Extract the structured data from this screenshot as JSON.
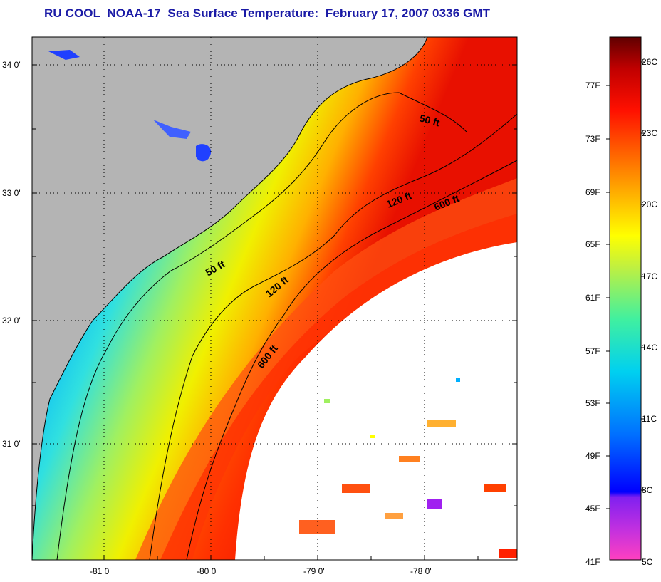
{
  "title": "RU COOL  NOAA-17  Sea Surface Temperature:  February 17, 2007 0336 GMT",
  "map": {
    "lat_labels": [
      "34 0'",
      "33 0'",
      "32 0'",
      "31 0'"
    ],
    "lon_labels": [
      "-81 0'",
      "-80 0'",
      "-79 0'",
      "-78 0'"
    ],
    "contours": [
      "50 ft",
      "120 ft",
      "600 ft"
    ],
    "contour_label_positions": {
      "50_ft_a": "50 ft",
      "50_ft_b": "50 ft",
      "120_ft_a": "120 ft",
      "120_ft_b": "120 ft",
      "600_ft_a": "600 ft",
      "600_ft_b": "600 ft"
    },
    "colors": {
      "land": "#b4b4b4",
      "cloud": "#ffffff",
      "border": "#000000"
    }
  },
  "colorbar": {
    "fahrenheit": [
      "77F",
      "73F",
      "69F",
      "65F",
      "61F",
      "57F",
      "53F",
      "49F",
      "45F",
      "41F"
    ],
    "celsius": [
      "26C",
      "23C",
      "20C",
      "17C",
      "14C",
      "11C",
      "8C",
      "5C"
    ],
    "gradient": [
      "#ff40c0",
      "#a020f0",
      "#0000ff",
      "#0080ff",
      "#00e0e0",
      "#60ff80",
      "#ffff00",
      "#ffa000",
      "#ff2000",
      "#c00000",
      "#600000"
    ]
  }
}
